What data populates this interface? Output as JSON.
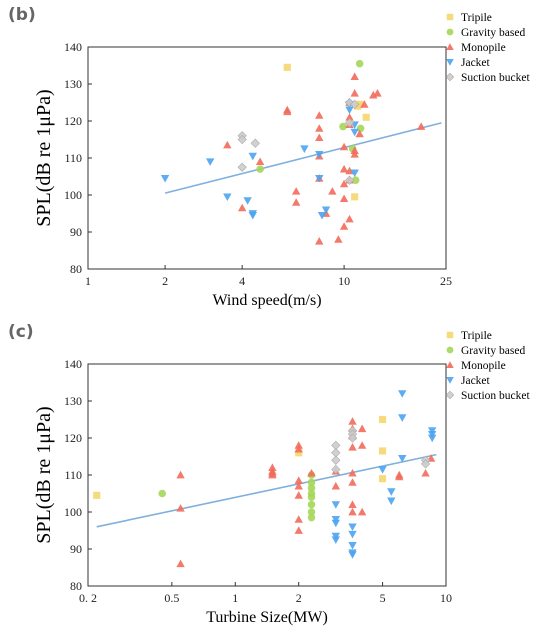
{
  "chart_data": [
    {
      "panel_label": "(b)",
      "type": "scatter",
      "xlabel": "Wind speed(m/s)",
      "ylabel": "SPL(dB re 1μPa)",
      "xscale": "log",
      "x_ticks": [
        1,
        2,
        4,
        10,
        25
      ],
      "y_ticks": [
        80,
        90,
        100,
        110,
        120,
        130,
        140
      ],
      "xlim": [
        1,
        25
      ],
      "ylim": [
        80,
        140
      ],
      "legend_position": "top-right",
      "series": [
        {
          "name": "Tripile",
          "marker": "square",
          "color": "#F5D76E",
          "x": [
            6.0,
            11.0,
            11.5,
            12.2,
            11.3
          ],
          "y": [
            134.5,
            99.5,
            124.5,
            121.0,
            124.0
          ]
        },
        {
          "name": "Gravity based",
          "marker": "circle",
          "color": "#A5D65A",
          "x": [
            4.7,
            9.9,
            11.5,
            11.1,
            10.8,
            11.6
          ],
          "y": [
            107.0,
            118.5,
            135.5,
            104.0,
            112.5,
            118.0
          ]
        },
        {
          "name": "Monopile",
          "marker": "triangle-up",
          "color": "#F26B5B",
          "x": [
            3.5,
            4.0,
            4.7,
            6.0,
            6.0,
            6.5,
            6.5,
            8.0,
            8.0,
            8.0,
            8.0,
            8.0,
            8.0,
            8.5,
            9.0,
            9.5,
            10.0,
            10.0,
            10.0,
            10.0,
            10.0,
            10.5,
            10.5,
            10.5,
            10.5,
            10.5,
            10.5,
            11.0,
            11.0,
            11.0,
            11.0,
            11.5,
            12.0,
            13.0,
            13.5,
            20.0
          ],
          "y": [
            113.5,
            96.5,
            109.0,
            123.0,
            122.5,
            101.0,
            98.0,
            121.5,
            118.0,
            115.5,
            110.5,
            104.5,
            87.5,
            95.0,
            101.0,
            88.0,
            113.0,
            107.0,
            103.0,
            99.0,
            91.5,
            125.0,
            121.0,
            119.0,
            106.5,
            104.0,
            93.5,
            132.0,
            127.5,
            112.0,
            111.0,
            116.5,
            124.5,
            127.0,
            127.5,
            118.5
          ]
        },
        {
          "name": "Jacket",
          "marker": "triangle-down",
          "color": "#4DA3F0",
          "x": [
            2.0,
            3.0,
            3.5,
            4.2,
            4.4,
            4.4,
            4.4,
            7.0,
            8.0,
            8.0,
            8.2,
            8.5,
            10.5,
            10.5,
            11.0,
            11.0,
            11.0
          ],
          "y": [
            104.5,
            109.0,
            99.5,
            98.5,
            110.5,
            95.0,
            94.5,
            112.5,
            111.0,
            104.5,
            94.5,
            96.0,
            124.5,
            123.0,
            119.0,
            117.0,
            106.0
          ]
        },
        {
          "name": "Suction bucket",
          "marker": "diamond",
          "color": "#CCCCCC",
          "x": [
            4.0,
            4.0,
            4.0,
            4.5,
            10.5,
            10.5,
            10.5,
            11.0
          ],
          "y": [
            116.0,
            115.0,
            107.5,
            114.0,
            125.0,
            119.5,
            104.0,
            124.5
          ]
        }
      ],
      "fit_line": {
        "color": "#7FB0DD",
        "x": [
          2,
          24
        ],
        "y": [
          100.5,
          119.5
        ]
      }
    },
    {
      "panel_label": "(c)",
      "type": "scatter",
      "xlabel": "Turbine Size(MW)",
      "ylabel": "SPL(dB re 1μPa)",
      "xscale": "log",
      "x_ticks": [
        0.2,
        0.5,
        1,
        2,
        5,
        10
      ],
      "x_tick_labels": [
        "0. 2",
        "0.5",
        "1",
        "2",
        "5",
        "10"
      ],
      "y_ticks": [
        80,
        90,
        100,
        110,
        120,
        130,
        140
      ],
      "xlim": [
        0.2,
        10
      ],
      "ylim": [
        80,
        140
      ],
      "legend_position": "top-right",
      "series": [
        {
          "name": "Tripile",
          "marker": "square",
          "color": "#F5D76E",
          "x": [
            0.22,
            2.0,
            5.0,
            5.0,
            5.0
          ],
          "y": [
            104.5,
            116.0,
            125.0,
            116.5,
            109.0
          ]
        },
        {
          "name": "Gravity based",
          "marker": "circle",
          "color": "#A5D65A",
          "x": [
            0.45,
            2.3,
            2.3,
            2.3,
            2.3,
            2.3,
            2.3,
            2.3,
            2.3
          ],
          "y": [
            105.0,
            110.0,
            108.0,
            106.5,
            105.0,
            104.0,
            102.0,
            100.0,
            98.5
          ]
        },
        {
          "name": "Monopile",
          "marker": "triangle-up",
          "color": "#F26B5B",
          "x": [
            0.55,
            0.55,
            0.55,
            1.5,
            1.5,
            1.5,
            1.5,
            2.0,
            2.0,
            2.0,
            2.0,
            2.0,
            2.0,
            2.0,
            2.3,
            3.0,
            3.0,
            3.6,
            3.6,
            3.6,
            3.6,
            3.6,
            3.6,
            3.6,
            3.6,
            4.0,
            4.0,
            4.0,
            6.0,
            6.0,
            8.0,
            8.5
          ],
          "y": [
            110.0,
            101.0,
            86.0,
            112.0,
            111.0,
            110.5,
            110.0,
            118.0,
            117.0,
            108.5,
            107.0,
            104.5,
            98.0,
            95.0,
            110.5,
            111.0,
            107.0,
            124.5,
            122.5,
            120.5,
            117.5,
            110.5,
            108.0,
            102.0,
            100.0,
            122.5,
            118.0,
            100.0,
            110.0,
            109.5,
            110.5,
            114.5
          ]
        },
        {
          "name": "Jacket",
          "marker": "triangle-down",
          "color": "#4DA3F0",
          "x": [
            3.0,
            3.0,
            3.0,
            3.0,
            3.0,
            3.6,
            3.6,
            3.6,
            3.6,
            3.6,
            5.0,
            5.5,
            5.5,
            6.2,
            6.2,
            6.2,
            8.6,
            8.6,
            8.6
          ],
          "y": [
            102.0,
            98.0,
            97.0,
            93.5,
            92.5,
            94.0,
            91.0,
            89.0,
            88.5,
            96.0,
            111.5,
            105.5,
            103.0,
            132.0,
            125.5,
            114.5,
            122.0,
            121.0,
            120.0
          ]
        },
        {
          "name": "Suction bucket",
          "marker": "diamond",
          "color": "#CCCCCC",
          "x": [
            3.0,
            3.0,
            3.0,
            3.0,
            3.6,
            3.6,
            3.6,
            8.0,
            8.0
          ],
          "y": [
            118.0,
            116.0,
            114.0,
            111.5,
            122.0,
            121.0,
            120.0,
            114.0,
            113.0
          ]
        }
      ],
      "fit_line": {
        "color": "#7FB0DD",
        "x": [
          0.22,
          9.0
        ],
        "y": [
          96.0,
          115.5
        ]
      }
    }
  ]
}
